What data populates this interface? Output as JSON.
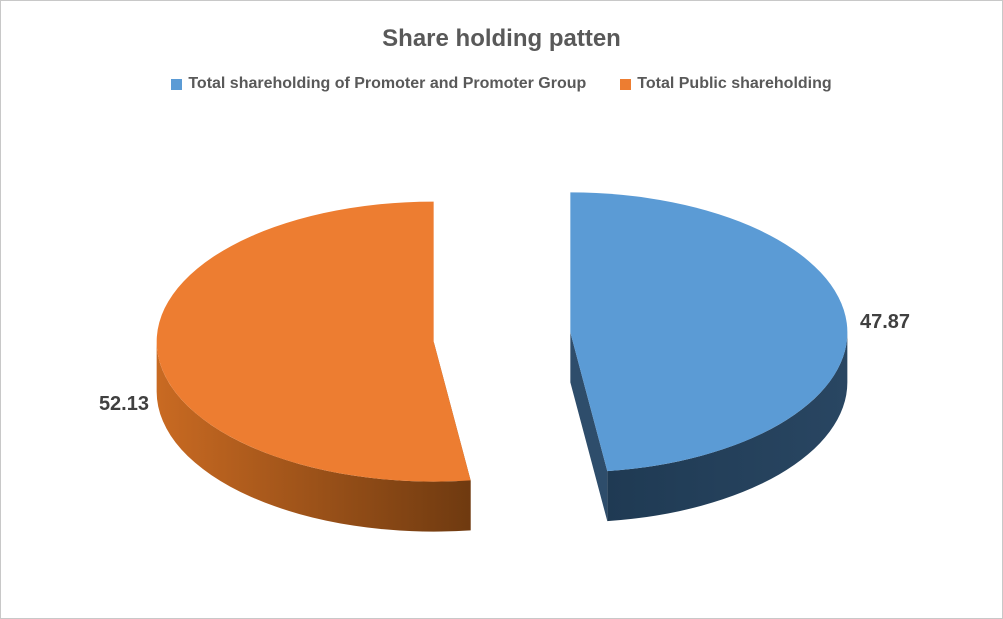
{
  "chart_data": {
    "type": "pie",
    "style": "3d-exploded-pie",
    "title": "Share holding patten",
    "legend_position": "top",
    "data_labels": "outside-end",
    "series": [
      {
        "name": "Total shareholding of Promoter and Promoter Group",
        "value": 47.87,
        "label": "47.87",
        "color": "#5B9BD5",
        "side_left_color": "#1F3A53",
        "side_right_color": "#294662",
        "cut_face_color": "#2E4D6B"
      },
      {
        "name": "Total Public shareholding",
        "value": 52.13,
        "label": "52.13",
        "color": "#ED7D31",
        "side_left_color": "#C96A22",
        "side_right_color": "#6F3A10",
        "cut_face_color": "#7B4516"
      }
    ],
    "title_color": "#595959",
    "legend_text_color": "#595959",
    "label_color": "#404040",
    "background_color": "#ffffff",
    "border_color": "#c8c8c8"
  }
}
